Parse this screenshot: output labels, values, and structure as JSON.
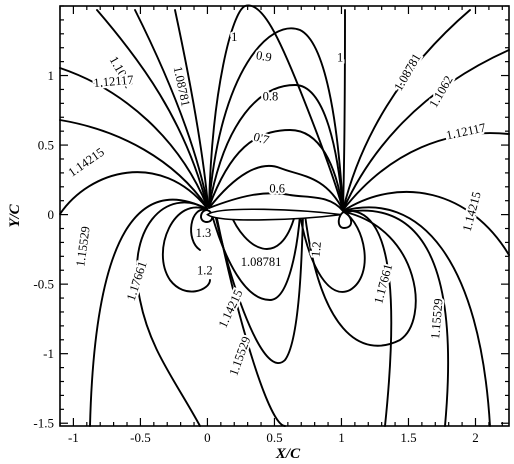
{
  "chart_data": {
    "type": "contour",
    "xlabel": "X/C",
    "ylabel": "Y/C",
    "xlim": [
      -1.1,
      2.25
    ],
    "ylim": [
      -1.52,
      1.5
    ],
    "x_ticks": [
      -1,
      -0.5,
      0,
      0.5,
      1,
      1.5,
      2
    ],
    "x_tick_labels": [
      "-1",
      "-0.5",
      "0",
      "0.5",
      "1",
      "1.5",
      "2"
    ],
    "y_ticks": [
      -1.5,
      -1,
      -0.5,
      0,
      0.5,
      1
    ],
    "y_tick_labels": [
      "-1.5",
      "-1",
      "-0.5",
      "0",
      "0.5",
      "1"
    ],
    "x_minor_step": 0.1,
    "y_minor_step": 0.1,
    "grid": false,
    "labels": [
      {
        "text": "1.1062",
        "x": -0.65,
        "y": 1.02,
        "rot": 60
      },
      {
        "text": "1.12117",
        "x": -0.7,
        "y": 0.95,
        "rot": -5
      },
      {
        "text": "1.08781",
        "x": -0.2,
        "y": 0.92,
        "rot": 78
      },
      {
        "text": "1",
        "x": 0.2,
        "y": 1.27,
        "rot": 0
      },
      {
        "text": "0.9",
        "x": 0.42,
        "y": 1.13,
        "rot": 10
      },
      {
        "text": "0.8",
        "x": 0.47,
        "y": 0.84,
        "rot": 0
      },
      {
        "text": "0.7",
        "x": 0.4,
        "y": 0.54,
        "rot": 15
      },
      {
        "text": "0.6",
        "x": 0.52,
        "y": 0.18,
        "rot": 0
      },
      {
        "text": "1",
        "x": 0.99,
        "y": 1.12,
        "rot": 0
      },
      {
        "text": "1.08781",
        "x": 1.5,
        "y": 1.02,
        "rot": -60
      },
      {
        "text": "1.1062",
        "x": 1.75,
        "y": 0.88,
        "rot": -60
      },
      {
        "text": "1.12117",
        "x": 1.93,
        "y": 0.59,
        "rot": -12
      },
      {
        "text": "1.14215",
        "x": -0.9,
        "y": 0.37,
        "rot": -35
      },
      {
        "text": "1.14215",
        "x": 1.98,
        "y": 0.02,
        "rot": -75
      },
      {
        "text": "1.15529",
        "x": -0.92,
        "y": -0.23,
        "rot": -82
      },
      {
        "text": "1.17661",
        "x": -0.52,
        "y": -0.48,
        "rot": -72
      },
      {
        "text": "1.3",
        "x": -0.03,
        "y": -0.14,
        "rot": 0
      },
      {
        "text": "1.2",
        "x": -0.02,
        "y": -0.41,
        "rot": 0
      },
      {
        "text": "1.08781",
        "x": 0.4,
        "y": -0.35,
        "rot": 0
      },
      {
        "text": "1.2",
        "x": 0.82,
        "y": -0.25,
        "rot": -85
      },
      {
        "text": "1.14215",
        "x": 0.18,
        "y": -0.68,
        "rot": -65
      },
      {
        "text": "1.15529",
        "x": 0.25,
        "y": -1.02,
        "rot": -70
      },
      {
        "text": "1.17661",
        "x": 1.32,
        "y": -0.5,
        "rot": -75
      },
      {
        "text": "1.15529",
        "x": 1.72,
        "y": -0.75,
        "rot": -85
      }
    ]
  }
}
